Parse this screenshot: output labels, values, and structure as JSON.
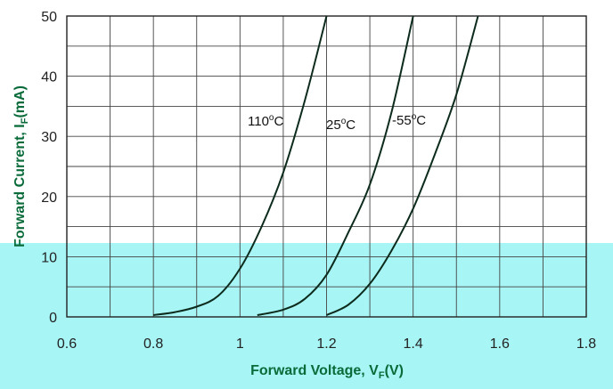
{
  "chart_data": {
    "type": "line",
    "xlabel": {
      "main": "Forward Voltage, V",
      "sub": "F",
      "tail": "(V)"
    },
    "ylabel": {
      "main": "Forward Current, I",
      "sub": "F",
      "tail": "(mA)"
    },
    "xlim": [
      0.6,
      1.8
    ],
    "ylim": [
      0,
      50
    ],
    "x_ticks": [
      "0.6",
      "0.8",
      "1",
      "1.2",
      "1.4",
      "1.6",
      "1.8"
    ],
    "y_ticks": [
      "0",
      "10",
      "20",
      "30",
      "40",
      "50"
    ],
    "grid": true,
    "series": [
      {
        "label": {
          "num": "110",
          "deg": "o",
          "unit": "C"
        },
        "points": [
          [
            0.8,
            0.3
          ],
          [
            0.85,
            0.8
          ],
          [
            0.9,
            1.7
          ],
          [
            0.95,
            3.5
          ],
          [
            1.0,
            8.0
          ],
          [
            1.05,
            15.0
          ],
          [
            1.1,
            24.0
          ],
          [
            1.15,
            36.0
          ],
          [
            1.2,
            50.0
          ]
        ]
      },
      {
        "label": {
          "num": "25",
          "deg": "o",
          "unit": "C"
        },
        "points": [
          [
            1.04,
            0.3
          ],
          [
            1.1,
            1.2
          ],
          [
            1.15,
            3.0
          ],
          [
            1.2,
            7.0
          ],
          [
            1.25,
            14.0
          ],
          [
            1.3,
            22.0
          ],
          [
            1.35,
            34.0
          ],
          [
            1.4,
            50.0
          ]
        ]
      },
      {
        "label": {
          "num": "-55",
          "deg": "o",
          "unit": "C"
        },
        "points": [
          [
            1.2,
            0.3
          ],
          [
            1.25,
            2.0
          ],
          [
            1.3,
            5.5
          ],
          [
            1.35,
            11.0
          ],
          [
            1.4,
            18.0
          ],
          [
            1.45,
            27.0
          ],
          [
            1.5,
            37.0
          ],
          [
            1.55,
            50.0
          ]
        ]
      }
    ],
    "colors": {
      "highlight": "#a8f5f5",
      "line": "#0d2b1c",
      "grid": "#444444",
      "axis_title": "#0a6b3a"
    }
  }
}
